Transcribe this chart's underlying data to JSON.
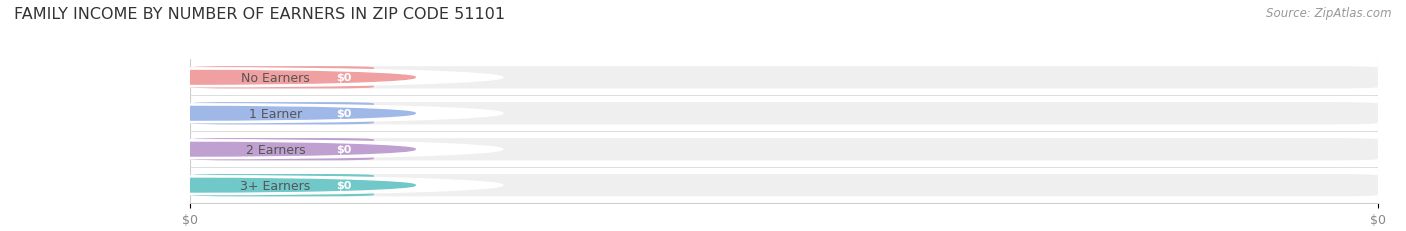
{
  "title": "FAMILY INCOME BY NUMBER OF EARNERS IN ZIP CODE 51101",
  "source_text": "Source: ZipAtlas.com",
  "categories": [
    "No Earners",
    "1 Earner",
    "2 Earners",
    "3+ Earners"
  ],
  "values": [
    0,
    0,
    0,
    0
  ],
  "bar_colors": [
    "#f0a0a0",
    "#a0b8e8",
    "#c0a0d0",
    "#70c8c8"
  ],
  "circle_colors": [
    "#f0a0a0",
    "#a0b8e8",
    "#c0a0d0",
    "#70c8c8"
  ],
  "bar_bg_color": "#efefef",
  "background_color": "#ffffff",
  "title_fontsize": 11.5,
  "source_fontsize": 8.5,
  "tick_fontsize": 9,
  "value_labels": [
    "$0",
    "$0",
    "$0",
    "$0"
  ],
  "xtick_labels": [
    "$0",
    "$0"
  ]
}
